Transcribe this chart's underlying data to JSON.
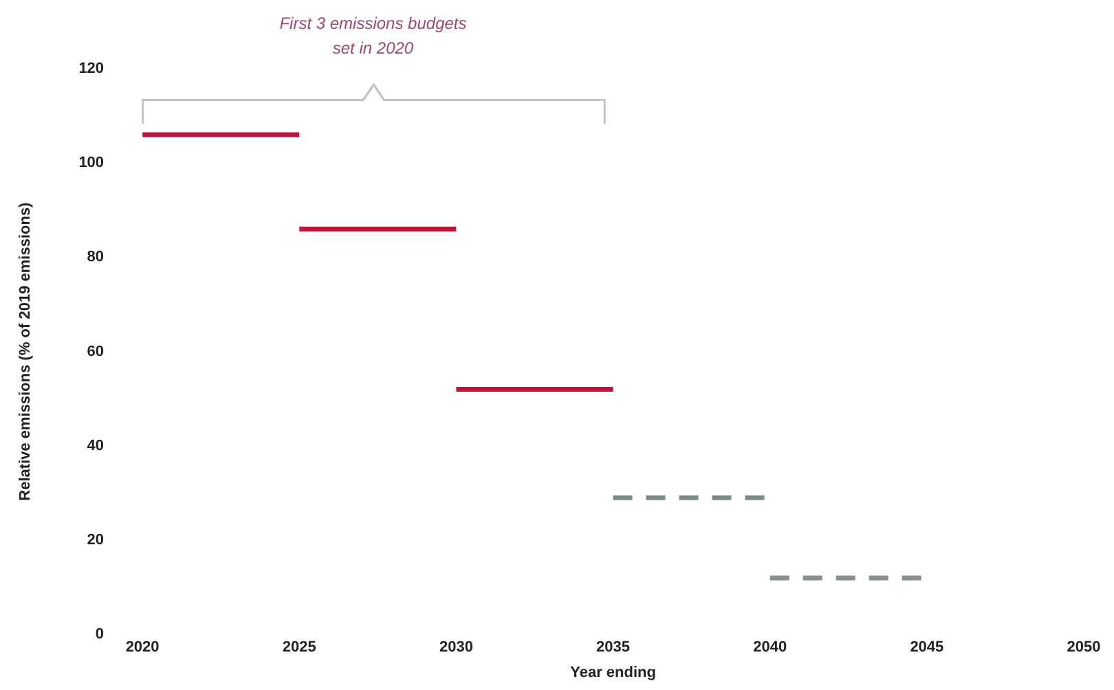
{
  "chart_data": {
    "type": "line",
    "xlabel": "Year ending",
    "ylabel": "Relative emissions (% of 2019 emissions)",
    "annotations": [
      "First 3 emissions budgets set in 2020"
    ],
    "series": [
      {
        "color": "#c0143c",
        "x": [
          2020,
          2025
        ],
        "values": [
          106,
          106
        ],
        "line_style": "solid"
      },
      {
        "color": "#c0143c",
        "x": [
          2025,
          2030
        ],
        "values": [
          86,
          86
        ],
        "line_style": "solid"
      },
      {
        "color": "#c0143c",
        "x": [
          2030,
          2035
        ],
        "values": [
          52,
          52
        ],
        "line_style": "solid"
      },
      {
        "color": "#7a8c8a",
        "x": [
          2035,
          2040
        ],
        "values": [
          29,
          29
        ],
        "line_style": "dashed"
      },
      {
        "color": "#8a8f8f",
        "x": [
          2040,
          2045
        ],
        "values": [
          12,
          12
        ],
        "line_style": "dashed"
      }
    ],
    "xlim": [
      2020,
      2050
    ],
    "xticks": [
      2020,
      2025,
      2030,
      2035,
      2040,
      2045,
      2050
    ],
    "ylim": [
      0,
      120
    ],
    "yticks": [
      0,
      20,
      40,
      60,
      80,
      100,
      120
    ],
    "grid": false,
    "legend": false,
    "marker": "none"
  }
}
